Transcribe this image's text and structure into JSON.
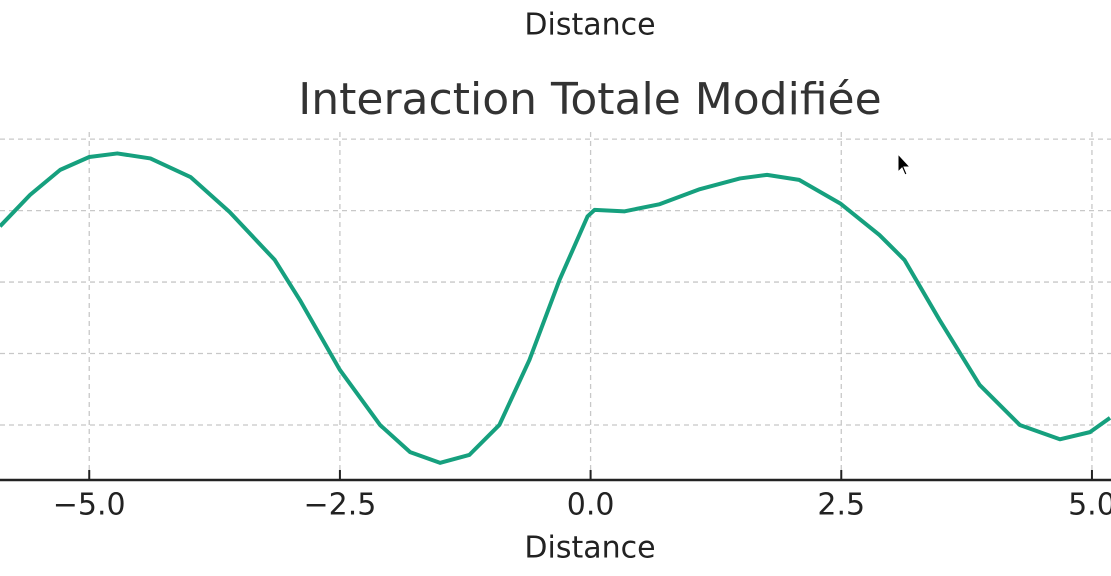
{
  "chart_data": [
    {
      "type": "line",
      "xlabel": "Distance"
    },
    {
      "type": "line",
      "title": "Interaction Totale Modifiée",
      "xlabel": "Distance",
      "x": [
        -5.89,
        -5.59,
        -5.29,
        -5.0,
        -4.72,
        -4.39,
        -3.99,
        -3.6,
        -3.15,
        -2.9,
        -2.5,
        -2.1,
        -1.8,
        -1.5,
        -1.21,
        -0.91,
        -0.61,
        -0.31,
        -0.03,
        0.04,
        0.34,
        0.69,
        1.09,
        1.49,
        1.76,
        2.08,
        2.49,
        2.88,
        3.13,
        3.48,
        3.88,
        4.28,
        4.68,
        4.98,
        5.18
      ],
      "series": [
        {
          "color": "#16a07e",
          "values": [
            3.78,
            4.22,
            4.57,
            4.75,
            4.8,
            4.73,
            4.47,
            3.98,
            3.31,
            2.75,
            1.77,
            1.0,
            0.62,
            0.47,
            0.58,
            1.0,
            1.91,
            3.03,
            3.92,
            4.01,
            3.99,
            4.09,
            4.3,
            4.45,
            4.5,
            4.43,
            4.1,
            3.66,
            3.31,
            2.47,
            1.56,
            1.0,
            0.8,
            0.9,
            1.1
          ]
        }
      ],
      "xlim": [
        -5.89,
        5.19
      ],
      "xticks": [
        {
          "value": -5,
          "label": "−5.0"
        },
        {
          "value": -2.5,
          "label": "−2.5"
        },
        {
          "value": 0,
          "label": "0.0"
        },
        2.5,
        {
          "value": 5,
          "label": "5.0"
        }
      ],
      "ylim": [
        0.23,
        5.1
      ],
      "yticks": [
        1,
        2,
        3,
        4,
        5
      ],
      "grid": true
    }
  ]
}
